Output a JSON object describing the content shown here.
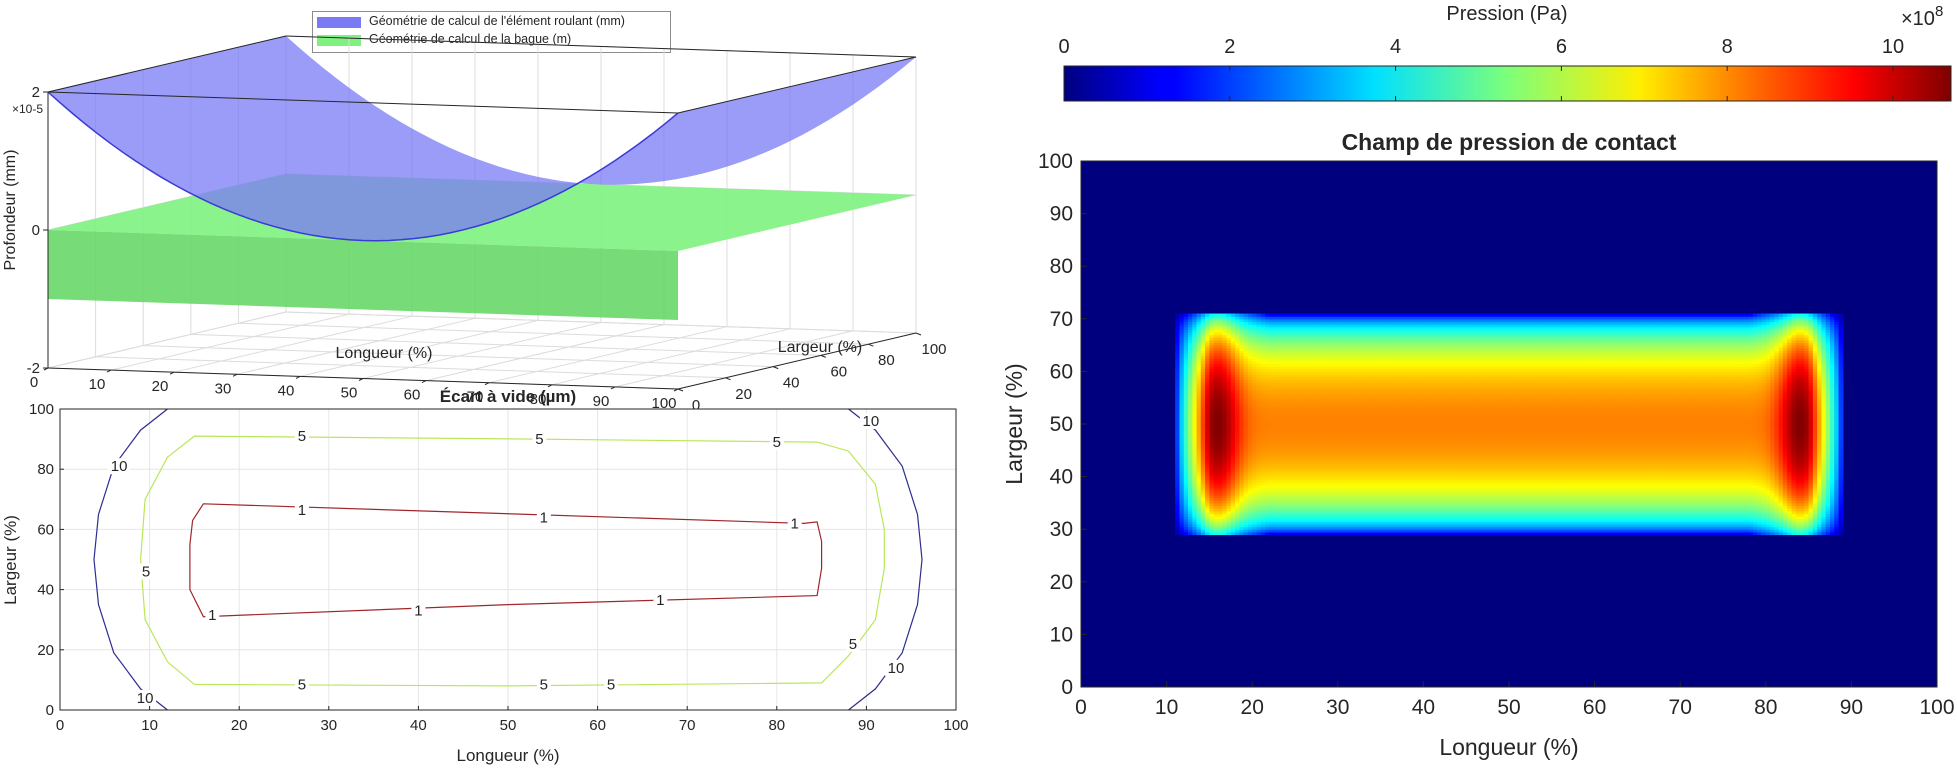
{
  "figure": {
    "legend": {
      "entries": [
        {
          "label": "Géométrie de calcul de l'élément roulant (mm)",
          "color": "#7a7af5"
        },
        {
          "label": "Géométrie de calcul de la bague (m)",
          "color": "#7ef27e"
        }
      ]
    }
  },
  "chart_data": [
    {
      "type": "surface3d",
      "title": "",
      "xlabel": "Longueur (%)",
      "ylabel": "Largeur (%)",
      "zlabel": "Profondeur (mm)",
      "z_exponent": "×10-5",
      "xlim": [
        0,
        100
      ],
      "ylim": [
        0,
        100
      ],
      "zlim": [
        -2,
        2
      ],
      "xticks": [
        "0",
        "10",
        "20",
        "30",
        "40",
        "50",
        "60",
        "70",
        "80",
        "90",
        "100"
      ],
      "yticks": [
        "0",
        "20",
        "40",
        "60",
        "80",
        "100"
      ],
      "zticks": [
        "2",
        "0",
        "-2"
      ],
      "grid": true,
      "legend_position": "top",
      "series": [
        {
          "name": "Géométrie de calcul de l'élément roulant (mm)",
          "color": "#7a7af5",
          "shape": "crowned cylinder, z from 0 (center) to about 2e-5 at ends"
        },
        {
          "name": "Géométrie de calcul de la bague (m)",
          "color": "#7ef27e",
          "shape": "flat plane at about z = 0"
        }
      ]
    },
    {
      "type": "contour",
      "title": "Écart à vide (µm)",
      "xlabel": "Longueur (%)",
      "ylabel": "Largeur (%)",
      "xlim": [
        0,
        100
      ],
      "ylim": [
        0,
        100
      ],
      "xticks": [
        "0",
        "10",
        "20",
        "30",
        "40",
        "50",
        "60",
        "70",
        "80",
        "90",
        "100"
      ],
      "yticks": [
        "0",
        "20",
        "40",
        "60",
        "80",
        "100"
      ],
      "grid": true,
      "levels": [
        {
          "level": 1,
          "color": "#a0262a",
          "points": [
            [
              16,
              68.5
            ],
            [
              83,
              62
            ],
            [
              84.5,
              62.5
            ],
            [
              85,
              56
            ],
            [
              85,
              47
            ],
            [
              84.5,
              38
            ],
            [
              50,
              35
            ],
            [
              16,
              31
            ],
            [
              14.5,
              40
            ],
            [
              14.5,
              55
            ],
            [
              14.8,
              63
            ],
            [
              16,
              68.5
            ]
          ],
          "labels": [
            {
              "text": "1",
              "x": 27,
              "y": 66.5
            },
            {
              "text": "1",
              "x": 54,
              "y": 64
            },
            {
              "text": "1",
              "x": 82,
              "y": 62
            },
            {
              "text": "1",
              "x": 17,
              "y": 31.5
            },
            {
              "text": "1",
              "x": 40,
              "y": 33
            },
            {
              "text": "1",
              "x": 67,
              "y": 36.5
            }
          ]
        },
        {
          "level": 5,
          "color": "#b8e85a",
          "points": [
            [
              15,
              91
            ],
            [
              53,
              90
            ],
            [
              84.5,
              89
            ],
            [
              88,
              86
            ],
            [
              91,
              75
            ],
            [
              92,
              60
            ],
            [
              92,
              47
            ],
            [
              91,
              30
            ],
            [
              88,
              18
            ],
            [
              85,
              9
            ],
            [
              50,
              8
            ],
            [
              15,
              8.5
            ],
            [
              12,
              16
            ],
            [
              9.5,
              30
            ],
            [
              9,
              50
            ],
            [
              9.5,
              70
            ],
            [
              12,
              84
            ],
            [
              15,
              91
            ]
          ],
          "labels": [
            {
              "text": "5",
              "x": 27,
              "y": 91
            },
            {
              "text": "5",
              "x": 53.5,
              "y": 90
            },
            {
              "text": "5",
              "x": 80,
              "y": 89
            },
            {
              "text": "5",
              "x": 9.6,
              "y": 46
            },
            {
              "text": "5",
              "x": 27,
              "y": 8.5
            },
            {
              "text": "5",
              "x": 54,
              "y": 8.5
            },
            {
              "text": "5",
              "x": 61.5,
              "y": 8.5
            },
            {
              "text": "5",
              "x": 88.5,
              "y": 22
            }
          ]
        },
        {
          "level": 10,
          "color": "#2e2e8c",
          "points": [
            [
              12,
              100
            ],
            [
              9,
              93
            ],
            [
              6,
              81
            ],
            [
              4.3,
              65
            ],
            [
              3.8,
              50
            ],
            [
              4.3,
              35
            ],
            [
              6,
              19
            ],
            [
              9,
              7
            ],
            [
              12,
              0
            ],
            [
              88,
              0
            ],
            [
              91,
              7
            ],
            [
              94,
              19
            ],
            [
              95.7,
              35
            ],
            [
              96.2,
              50
            ],
            [
              95.7,
              65
            ],
            [
              94,
              81
            ],
            [
              91,
              93
            ],
            [
              88,
              100
            ]
          ],
          "open_between": [
            [
              12,
              100
            ],
            [
              88,
              100
            ]
          ],
          "labels": [
            {
              "text": "10",
              "x": 6.6,
              "y": 81
            },
            {
              "text": "10",
              "x": 9.5,
              "y": 4
            },
            {
              "text": "10",
              "x": 90.5,
              "y": 96
            },
            {
              "text": "10",
              "x": 93.3,
              "y": 14
            }
          ]
        }
      ]
    },
    {
      "type": "heatmap",
      "title": "Champ de pression de contact",
      "xlabel": "Longueur (%)",
      "ylabel": "Largeur (%)",
      "xlim": [
        0,
        100
      ],
      "ylim": [
        0,
        100
      ],
      "xticks": [
        "0",
        "10",
        "20",
        "30",
        "40",
        "50",
        "60",
        "70",
        "80",
        "90",
        "100"
      ],
      "yticks": [
        "0",
        "10",
        "20",
        "30",
        "40",
        "50",
        "60",
        "70",
        "80",
        "90",
        "100"
      ],
      "grid": false,
      "colormap": "jet",
      "colorbar": {
        "label": "Pression (Pa)",
        "exponent_base": "×10",
        "exponent_power": "8",
        "ticks": [
          0,
          2,
          4,
          6,
          8,
          10
        ],
        "tick_labels": [
          "0",
          "2",
          "4",
          "6",
          "8",
          "10"
        ],
        "range": [
          0,
          10.7
        ],
        "position": "top"
      },
      "contact_patch": {
        "x_range": [
          11,
          89
        ],
        "y_range": [
          29,
          71
        ],
        "peak_value": 10.7,
        "peak_locations": [
          [
            16,
            50
          ],
          [
            84,
            50
          ]
        ],
        "center_value": 8.0,
        "edge_value": 0
      }
    }
  ]
}
